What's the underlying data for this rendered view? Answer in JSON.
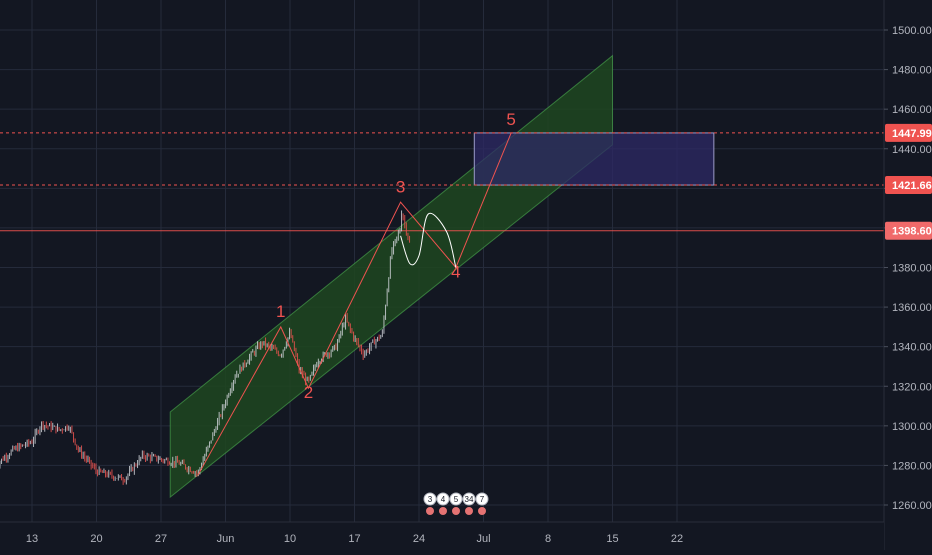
{
  "chart_data": {
    "type": "candlestick",
    "title": "",
    "xlabel": "",
    "ylabel": "",
    "ylim": [
      1255,
      1510
    ],
    "x_range": [
      "2019-05-09",
      "2019-07-26"
    ],
    "grid": true,
    "y_ticks": [
      1260,
      1280,
      1300,
      1320,
      1340,
      1360,
      1380,
      1400,
      1420,
      1440,
      1460,
      1480,
      1500
    ],
    "y_tick_labels": [
      "1260.00",
      "1280.00",
      "1300.00",
      "1320.00",
      "1340.00",
      "1360.00",
      "1380.00",
      "1400.00",
      "1420.00",
      "1440.00",
      "1460.00",
      "1480.00",
      "1500.00"
    ],
    "x_ticks": [
      {
        "date": "2019-05-13",
        "label": "13"
      },
      {
        "date": "2019-05-20",
        "label": "20"
      },
      {
        "date": "2019-05-27",
        "label": "27"
      },
      {
        "date": "2019-06-03",
        "label": "Jun"
      },
      {
        "date": "2019-06-10",
        "label": "10"
      },
      {
        "date": "2019-06-17",
        "label": "17"
      },
      {
        "date": "2019-06-24",
        "label": "24"
      },
      {
        "date": "2019-07-01",
        "label": "Jul"
      },
      {
        "date": "2019-07-08",
        "label": "8"
      },
      {
        "date": "2019-07-15",
        "label": "15"
      },
      {
        "date": "2019-07-22",
        "label": "22"
      }
    ],
    "price_path": [
      {
        "x": "2019-05-09",
        "y": 1280
      },
      {
        "x": "2019-05-11",
        "y": 1288
      },
      {
        "x": "2019-05-13",
        "y": 1292
      },
      {
        "x": "2019-05-14",
        "y": 1301
      },
      {
        "x": "2019-05-16",
        "y": 1298
      },
      {
        "x": "2019-05-17",
        "y": 1300
      },
      {
        "x": "2019-05-18",
        "y": 1288
      },
      {
        "x": "2019-05-20",
        "y": 1277
      },
      {
        "x": "2019-05-23",
        "y": 1273
      },
      {
        "x": "2019-05-25",
        "y": 1285
      },
      {
        "x": "2019-05-27",
        "y": 1283
      },
      {
        "x": "2019-05-29",
        "y": 1281
      },
      {
        "x": "2019-05-31",
        "y": 1276
      },
      {
        "x": "2019-06-02",
        "y": 1300
      },
      {
        "x": "2019-06-04",
        "y": 1325
      },
      {
        "x": "2019-06-06",
        "y": 1337
      },
      {
        "x": "2019-06-07",
        "y": 1342
      },
      {
        "x": "2019-06-09",
        "y": 1336
      },
      {
        "x": "2019-06-10",
        "y": 1347
      },
      {
        "x": "2019-06-11",
        "y": 1328
      },
      {
        "x": "2019-06-12",
        "y": 1322
      },
      {
        "x": "2019-06-13",
        "y": 1333
      },
      {
        "x": "2019-06-15",
        "y": 1340
      },
      {
        "x": "2019-06-16",
        "y": 1354
      },
      {
        "x": "2019-06-17",
        "y": 1344
      },
      {
        "x": "2019-06-18",
        "y": 1336
      },
      {
        "x": "2019-06-19",
        "y": 1342
      },
      {
        "x": "2019-06-20",
        "y": 1346
      },
      {
        "x": "2019-06-21",
        "y": 1388
      },
      {
        "x": "2019-06-22",
        "y": 1400
      },
      {
        "x": "2019-06-22",
        "y": 1410
      },
      {
        "x": "2019-06-23",
        "y": 1392
      },
      {
        "x": "2019-06-23",
        "y": 1398.6
      }
    ],
    "channel": {
      "lower": [
        {
          "x": "2019-05-28",
          "y": 1264
        },
        {
          "x": "2019-07-15",
          "y": 1442
        }
      ],
      "upper": [
        {
          "x": "2019-05-28",
          "y": 1307
        },
        {
          "x": "2019-07-15",
          "y": 1487
        }
      ]
    },
    "target_box": {
      "x0": "2019-06-30",
      "x1": "2019-07-26",
      "y0": 1421.66,
      "y1": 1447.99
    },
    "wave_path": [
      {
        "x": "2019-05-31",
        "y": 1275
      },
      {
        "x": "2019-06-09",
        "y": 1350
      },
      {
        "x": "2019-06-12",
        "y": 1319
      },
      {
        "x": "2019-06-22",
        "y": 1413
      },
      {
        "x": "2019-06-28",
        "y": 1380
      },
      {
        "x": "2019-07-04",
        "y": 1447.99
      }
    ],
    "wave_labels": [
      {
        "label": "1",
        "x": "2019-06-09",
        "y": 1355
      },
      {
        "label": "2",
        "x": "2019-06-12",
        "y": 1314
      },
      {
        "label": "3",
        "x": "2019-06-22",
        "y": 1418
      },
      {
        "label": "4",
        "x": "2019-06-28",
        "y": 1375
      },
      {
        "label": "5",
        "x": "2019-07-04",
        "y": 1452
      }
    ],
    "projection_curve": [
      {
        "x": "2019-06-22",
        "y": 1396
      },
      {
        "x": "2019-06-23",
        "y": 1382
      },
      {
        "x": "2019-06-24",
        "y": 1386
      },
      {
        "x": "2019-06-25",
        "y": 1407
      },
      {
        "x": "2019-06-27",
        "y": 1398
      },
      {
        "x": "2019-06-28",
        "y": 1380
      }
    ],
    "price_levels": [
      {
        "value": 1447.99,
        "label": "1447.99",
        "style": "dashed",
        "color": "#ef5350"
      },
      {
        "value": 1421.66,
        "label": "1421.66",
        "style": "dashed",
        "color": "#ef5350"
      },
      {
        "value": 1398.6,
        "label": "1398.60",
        "style": "solid",
        "color": "#ef5350"
      }
    ],
    "event_markers": [
      {
        "x": "2019-06-24",
        "label": "3"
      },
      {
        "x": "2019-06-25",
        "label": "4"
      },
      {
        "x": "2019-06-26",
        "label": "5"
      },
      {
        "x": "2019-06-27",
        "label": "34"
      },
      {
        "x": "2019-06-28",
        "label": "7"
      }
    ],
    "colors": {
      "background": "#131722",
      "grid": "#252b3b",
      "up": "#26a69a",
      "down": "#ef5350",
      "price_line": "#cfd2d8",
      "channel_fill": "#1e4620",
      "channel_border": "#4caf50",
      "box_fill": "#2e2a66",
      "box_border": "#9c9cc8",
      "wave": "#ef5350",
      "projection": "#ffffff",
      "axis_text": "#b2b5be"
    }
  }
}
